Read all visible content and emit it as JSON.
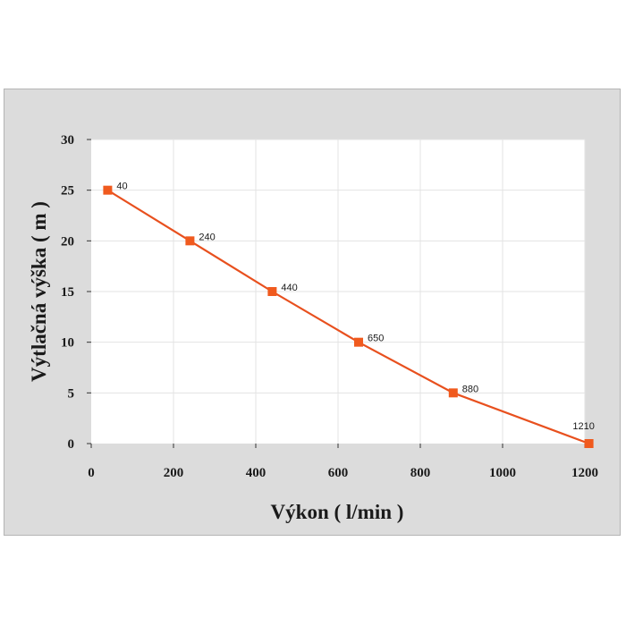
{
  "chart_data": {
    "type": "line",
    "title": "",
    "xlabel": "Výkon ( l/min )",
    "ylabel": "Výtlačná výška ( m )",
    "xlim": [
      0,
      1200
    ],
    "ylim": [
      0,
      30
    ],
    "xticks": [
      0,
      200,
      400,
      600,
      800,
      1000,
      1200
    ],
    "yticks": [
      0,
      5,
      10,
      15,
      20,
      25,
      30
    ],
    "grid": true,
    "legend": "none",
    "colors": {
      "line": "#e8501e",
      "marker": "#f05a1e",
      "plot_bg": "#ffffff",
      "frame_bg": "#dcdcdc",
      "grid": "#e3e3e3"
    },
    "series": [
      {
        "x": [
          40,
          240,
          440,
          650,
          880,
          1210
        ],
        "y": [
          25,
          20,
          15,
          10,
          5,
          0
        ],
        "labels": [
          "40",
          "240",
          "440",
          "650",
          "880",
          "1210"
        ]
      }
    ]
  }
}
